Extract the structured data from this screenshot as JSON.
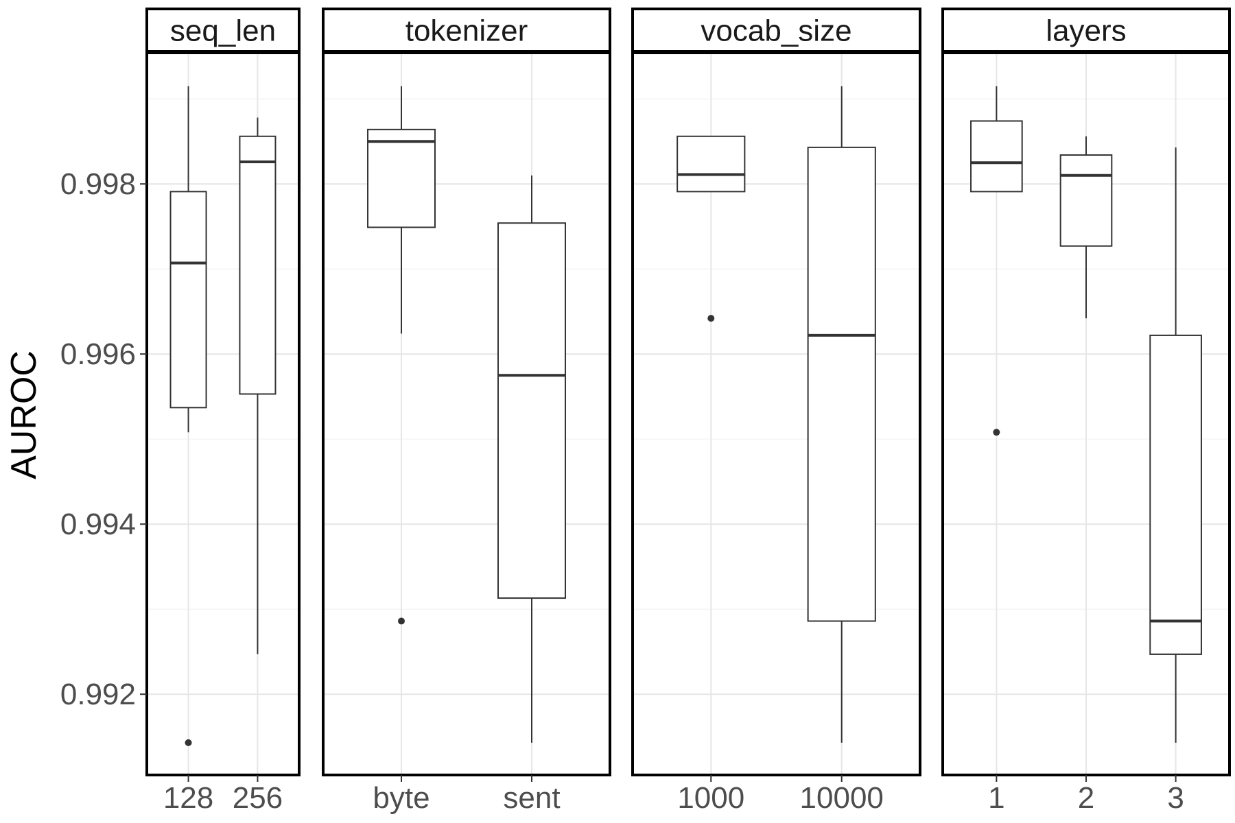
{
  "chart_data": {
    "type": "boxplot",
    "ylabel": "AUROC",
    "ylim": [
      0.99105,
      0.99955
    ],
    "yticks": [
      "0.998",
      "0.996",
      "0.994",
      "0.992"
    ],
    "grid": true,
    "panels": [
      {
        "strip": "seq_len",
        "categories": [
          "128",
          "256"
        ],
        "boxes": [
          {
            "q1": 0.99537,
            "median": 0.99707,
            "q3": 0.99791,
            "whisker_low": 0.99508,
            "whisker_high": 0.99915,
            "outliers": [
              0.99143
            ]
          },
          {
            "q1": 0.99553,
            "median": 0.99826,
            "q3": 0.99856,
            "whisker_low": 0.99247,
            "whisker_high": 0.99878,
            "outliers": []
          }
        ]
      },
      {
        "strip": "tokenizer",
        "categories": [
          "byte",
          "sent"
        ],
        "boxes": [
          {
            "q1": 0.99749,
            "median": 0.9985,
            "q3": 0.99864,
            "whisker_low": 0.99624,
            "whisker_high": 0.99915,
            "outliers": [
              0.99286
            ]
          },
          {
            "q1": 0.99313,
            "median": 0.99575,
            "q3": 0.99754,
            "whisker_low": 0.99143,
            "whisker_high": 0.9981,
            "outliers": []
          }
        ]
      },
      {
        "strip": "vocab_size",
        "categories": [
          "1000",
          "10000"
        ],
        "boxes": [
          {
            "q1": 0.99791,
            "median": 0.99811,
            "q3": 0.99856,
            "whisker_low": 0.99791,
            "whisker_high": 0.99856,
            "outliers": [
              0.99642
            ]
          },
          {
            "q1": 0.99286,
            "median": 0.99622,
            "q3": 0.99843,
            "whisker_low": 0.99143,
            "whisker_high": 0.99915,
            "outliers": []
          }
        ]
      },
      {
        "strip": "layers",
        "categories": [
          "1",
          "2",
          "3"
        ],
        "boxes": [
          {
            "q1": 0.99791,
            "median": 0.99825,
            "q3": 0.99874,
            "whisker_low": 0.99791,
            "whisker_high": 0.99915,
            "outliers": [
              0.99508
            ]
          },
          {
            "q1": 0.99727,
            "median": 0.9981,
            "q3": 0.99834,
            "whisker_low": 0.99642,
            "whisker_high": 0.99856,
            "outliers": []
          },
          {
            "q1": 0.99247,
            "median": 0.99286,
            "q3": 0.99622,
            "whisker_low": 0.99143,
            "whisker_high": 0.99843,
            "outliers": []
          }
        ]
      }
    ]
  }
}
